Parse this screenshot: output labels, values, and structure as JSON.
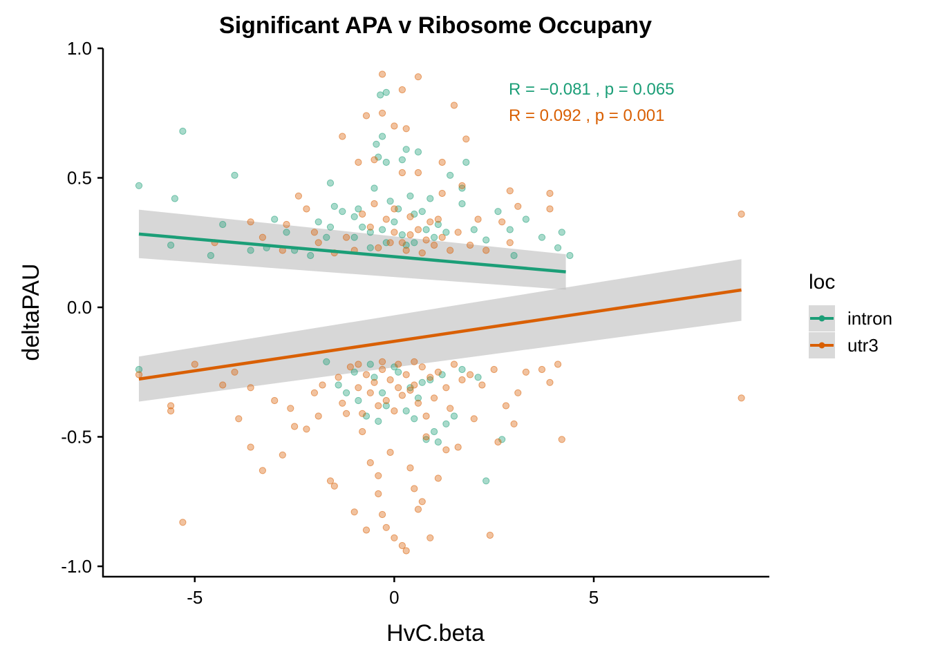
{
  "chart_data": {
    "type": "scatter",
    "title": "Significant APA v Ribosome Occupany",
    "xlabel": "HvC.beta",
    "ylabel": "deltaPAU",
    "xlim": [
      -7.3,
      9.4
    ],
    "ylim": [
      -1.04,
      1.0
    ],
    "x_ticks": [
      -5,
      0,
      5
    ],
    "x_tick_labels": [
      "-5",
      "0",
      "5"
    ],
    "y_ticks": [
      1.0,
      0.5,
      0.0,
      -0.5,
      -1.0
    ],
    "y_tick_labels": [
      "1.0",
      "0.5",
      "0.0",
      "-0.5",
      "-1.0"
    ],
    "grid": false,
    "legend": {
      "title": "loc",
      "position": "right",
      "entries": [
        {
          "label": "intron",
          "color": "#1b9e77"
        },
        {
          "label": "utr3",
          "color": "#d95f02"
        }
      ]
    },
    "annotations": [
      {
        "text": "R = −0.081 , p = 0.065",
        "color": "#1b9e77",
        "series": "intron"
      },
      {
        "text": "R = 0.092 , p = 0.001",
        "color": "#d95f02",
        "series": "utr3"
      }
    ],
    "regression": [
      {
        "series": "intron",
        "color": "#1b9e77",
        "x": [
          -6.4,
          4.3
        ],
        "y": [
          0.283,
          0.137
        ],
        "ci_lower": [
          0.19,
          0.068
        ],
        "ci_upper": [
          0.377,
          0.205
        ]
      },
      {
        "series": "utr3",
        "color": "#d95f02",
        "x": [
          -6.4,
          8.7
        ],
        "y": [
          -0.277,
          0.067
        ],
        "ci_lower": [
          -0.364,
          -0.052
        ],
        "ci_upper": [
          -0.19,
          0.186
        ]
      }
    ],
    "series": [
      {
        "name": "intron",
        "color": "#1b9e77",
        "points": [
          [
            -6.4,
            0.47
          ],
          [
            -5.3,
            0.68
          ],
          [
            -5.5,
            0.42
          ],
          [
            -5.6,
            0.24
          ],
          [
            -4.6,
            0.2
          ],
          [
            -4.3,
            0.32
          ],
          [
            -4.0,
            0.51
          ],
          [
            -3.6,
            0.22
          ],
          [
            -3.2,
            0.23
          ],
          [
            -3.0,
            0.34
          ],
          [
            -2.7,
            0.29
          ],
          [
            -2.5,
            0.22
          ],
          [
            -2.1,
            0.2
          ],
          [
            -1.9,
            0.33
          ],
          [
            -1.6,
            0.31
          ],
          [
            -1.7,
            0.27
          ],
          [
            -1.5,
            0.39
          ],
          [
            -1.3,
            0.37
          ],
          [
            -1.0,
            0.35
          ],
          [
            -1.6,
            0.48
          ],
          [
            -0.6,
            0.23
          ],
          [
            -0.5,
            0.46
          ],
          [
            -0.4,
            0.58
          ],
          [
            -0.35,
            0.82
          ],
          [
            -0.2,
            0.83
          ],
          [
            -0.3,
            0.66
          ],
          [
            -0.45,
            0.63
          ],
          [
            -0.2,
            0.56
          ],
          [
            0.3,
            0.61
          ],
          [
            0.6,
            0.6
          ],
          [
            0.2,
            0.57
          ],
          [
            0.4,
            0.43
          ],
          [
            0.1,
            0.38
          ],
          [
            0.5,
            0.36
          ],
          [
            0.9,
            0.42
          ],
          [
            1.1,
            0.32
          ],
          [
            1.4,
            0.51
          ],
          [
            1.7,
            0.46
          ],
          [
            1.8,
            0.56
          ],
          [
            1.7,
            0.4
          ],
          [
            2.0,
            0.3
          ],
          [
            2.3,
            0.26
          ],
          [
            2.6,
            0.37
          ],
          [
            2.9,
            0.3
          ],
          [
            3.0,
            0.2
          ],
          [
            3.3,
            0.34
          ],
          [
            3.7,
            0.27
          ],
          [
            4.1,
            0.23
          ],
          [
            4.2,
            0.29
          ],
          [
            4.4,
            0.2
          ],
          [
            -1.0,
            0.27
          ],
          [
            -0.8,
            0.31
          ],
          [
            -0.6,
            0.29
          ],
          [
            -0.3,
            0.3
          ],
          [
            0.0,
            0.33
          ],
          [
            0.2,
            0.28
          ],
          [
            0.5,
            0.25
          ],
          [
            0.8,
            0.3
          ],
          [
            1.0,
            0.27
          ],
          [
            1.3,
            0.29
          ],
          [
            -0.9,
            0.38
          ],
          [
            0.7,
            0.37
          ],
          [
            -0.1,
            0.41
          ],
          [
            0.3,
            0.24
          ],
          [
            -0.2,
            0.25
          ],
          [
            -6.4,
            -0.24
          ],
          [
            -1.7,
            -0.21
          ],
          [
            -1.4,
            -0.3
          ],
          [
            -1.2,
            -0.33
          ],
          [
            -0.9,
            -0.36
          ],
          [
            -0.7,
            -0.42
          ],
          [
            -0.4,
            -0.44
          ],
          [
            -0.2,
            -0.38
          ],
          [
            0.3,
            -0.4
          ],
          [
            0.6,
            -0.35
          ],
          [
            0.8,
            -0.51
          ],
          [
            1.0,
            -0.48
          ],
          [
            1.1,
            -0.52
          ],
          [
            1.3,
            -0.45
          ],
          [
            1.5,
            -0.42
          ],
          [
            1.7,
            -0.24
          ],
          [
            2.1,
            -0.27
          ],
          [
            2.3,
            -0.67
          ],
          [
            2.7,
            -0.51
          ],
          [
            -0.5,
            -0.27
          ],
          [
            0.1,
            -0.25
          ],
          [
            0.4,
            -0.31
          ],
          [
            0.9,
            -0.28
          ],
          [
            -0.6,
            -0.22
          ],
          [
            0.0,
            -0.23
          ],
          [
            1.2,
            -0.26
          ],
          [
            -1.0,
            -0.25
          ],
          [
            0.5,
            -0.43
          ],
          [
            -0.3,
            -0.33
          ],
          [
            0.7,
            -0.29
          ]
        ]
      },
      {
        "name": "utr3",
        "color": "#d95f02",
        "points": [
          [
            -0.3,
            0.9
          ],
          [
            0.6,
            0.89
          ],
          [
            0.2,
            0.84
          ],
          [
            -0.3,
            0.75
          ],
          [
            0.0,
            0.7
          ],
          [
            0.3,
            0.69
          ],
          [
            -0.7,
            0.74
          ],
          [
            1.5,
            0.78
          ],
          [
            1.8,
            0.65
          ],
          [
            -1.3,
            0.66
          ],
          [
            -0.5,
            0.57
          ],
          [
            -0.9,
            0.56
          ],
          [
            0.2,
            0.52
          ],
          [
            0.6,
            0.52
          ],
          [
            1.2,
            0.56
          ],
          [
            1.7,
            0.47
          ],
          [
            1.2,
            0.44
          ],
          [
            2.9,
            0.45
          ],
          [
            3.1,
            0.39
          ],
          [
            3.9,
            0.44
          ],
          [
            3.9,
            0.38
          ],
          [
            2.7,
            0.33
          ],
          [
            2.9,
            0.25
          ],
          [
            -2.4,
            0.43
          ],
          [
            -2.2,
            0.38
          ],
          [
            -2.7,
            0.32
          ],
          [
            -3.6,
            0.33
          ],
          [
            -3.3,
            0.27
          ],
          [
            -2.8,
            0.22
          ],
          [
            -2.0,
            0.29
          ],
          [
            -1.9,
            0.25
          ],
          [
            -1.2,
            0.27
          ],
          [
            -1.0,
            0.22
          ],
          [
            -0.8,
            0.36
          ],
          [
            -0.5,
            0.4
          ],
          [
            -0.2,
            0.34
          ],
          [
            0.0,
            0.29
          ],
          [
            0.2,
            0.25
          ],
          [
            0.4,
            0.28
          ],
          [
            0.6,
            0.3
          ],
          [
            0.8,
            0.26
          ],
          [
            1.0,
            0.24
          ],
          [
            1.2,
            0.27
          ],
          [
            1.4,
            0.22
          ],
          [
            1.6,
            0.29
          ],
          [
            2.1,
            0.34
          ],
          [
            2.3,
            0.22
          ],
          [
            -4.5,
            0.25
          ],
          [
            8.7,
            0.36
          ],
          [
            -0.6,
            0.31
          ],
          [
            0.0,
            0.38
          ],
          [
            0.4,
            0.35
          ],
          [
            0.9,
            0.33
          ],
          [
            -0.1,
            0.25
          ],
          [
            0.3,
            0.22
          ],
          [
            -0.4,
            0.23
          ],
          [
            0.7,
            0.21
          ],
          [
            1.1,
            0.34
          ],
          [
            -1.5,
            0.21
          ],
          [
            1.9,
            0.24
          ],
          [
            -6.4,
            -0.26
          ],
          [
            -5.6,
            -0.38
          ],
          [
            -5.6,
            -0.4
          ],
          [
            -5.3,
            -0.83
          ],
          [
            -5.0,
            -0.22
          ],
          [
            -4.3,
            -0.3
          ],
          [
            -4.0,
            -0.25
          ],
          [
            -3.9,
            -0.43
          ],
          [
            -3.6,
            -0.54
          ],
          [
            -3.3,
            -0.63
          ],
          [
            -3.0,
            -0.36
          ],
          [
            -2.8,
            -0.57
          ],
          [
            -2.5,
            -0.46
          ],
          [
            -2.2,
            -0.47
          ],
          [
            -1.9,
            -0.42
          ],
          [
            -1.6,
            -0.67
          ],
          [
            -1.5,
            -0.69
          ],
          [
            -1.2,
            -0.41
          ],
          [
            -0.8,
            -0.48
          ],
          [
            -0.6,
            -0.6
          ],
          [
            -0.4,
            -0.72
          ],
          [
            -0.3,
            -0.8
          ],
          [
            -0.2,
            -0.85
          ],
          [
            0.0,
            -0.89
          ],
          [
            0.2,
            -0.92
          ],
          [
            0.3,
            -0.94
          ],
          [
            0.6,
            -0.78
          ],
          [
            0.7,
            -0.75
          ],
          [
            0.9,
            -0.89
          ],
          [
            1.1,
            -0.66
          ],
          [
            1.3,
            -0.55
          ],
          [
            1.6,
            -0.54
          ],
          [
            2.0,
            -0.43
          ],
          [
            2.4,
            -0.88
          ],
          [
            2.6,
            -0.52
          ],
          [
            2.8,
            -0.38
          ],
          [
            3.0,
            -0.45
          ],
          [
            3.3,
            -0.25
          ],
          [
            3.7,
            -0.24
          ],
          [
            4.2,
            -0.51
          ],
          [
            3.9,
            -0.29
          ],
          [
            4.1,
            -0.22
          ],
          [
            8.7,
            -0.35
          ],
          [
            -1.0,
            -0.79
          ],
          [
            -0.7,
            -0.86
          ],
          [
            0.4,
            -0.62
          ],
          [
            0.8,
            -0.5
          ],
          [
            -0.1,
            -0.56
          ],
          [
            -0.4,
            -0.65
          ],
          [
            0.5,
            -0.7
          ],
          [
            -2.0,
            -0.33
          ],
          [
            -1.8,
            -0.3
          ],
          [
            -1.4,
            -0.27
          ],
          [
            -1.1,
            -0.23
          ],
          [
            -0.9,
            -0.31
          ],
          [
            -0.7,
            -0.26
          ],
          [
            -0.5,
            -0.29
          ],
          [
            -0.3,
            -0.24
          ],
          [
            -0.1,
            -0.28
          ],
          [
            0.1,
            -0.22
          ],
          [
            0.3,
            -0.26
          ],
          [
            0.5,
            -0.3
          ],
          [
            0.7,
            -0.23
          ],
          [
            0.9,
            -0.27
          ],
          [
            1.1,
            -0.25
          ],
          [
            1.3,
            -0.31
          ],
          [
            1.5,
            -0.22
          ],
          [
            1.7,
            -0.28
          ],
          [
            1.9,
            -0.26
          ],
          [
            2.2,
            -0.3
          ],
          [
            -0.6,
            -0.33
          ],
          [
            -0.2,
            -0.36
          ],
          [
            0.2,
            -0.34
          ],
          [
            0.6,
            -0.37
          ],
          [
            1.0,
            -0.35
          ],
          [
            -1.3,
            -0.37
          ],
          [
            1.4,
            -0.39
          ],
          [
            -0.8,
            -0.41
          ],
          [
            0.0,
            -0.4
          ],
          [
            0.8,
            -0.42
          ],
          [
            -0.4,
            -0.38
          ],
          [
            0.4,
            -0.32
          ],
          [
            -0.9,
            -0.22
          ],
          [
            0.1,
            -0.31
          ],
          [
            -0.3,
            -0.21
          ],
          [
            0.5,
            -0.21
          ],
          [
            -2.6,
            -0.39
          ],
          [
            2.5,
            -0.24
          ],
          [
            -3.6,
            -0.31
          ],
          [
            3.1,
            -0.33
          ]
        ]
      }
    ]
  }
}
